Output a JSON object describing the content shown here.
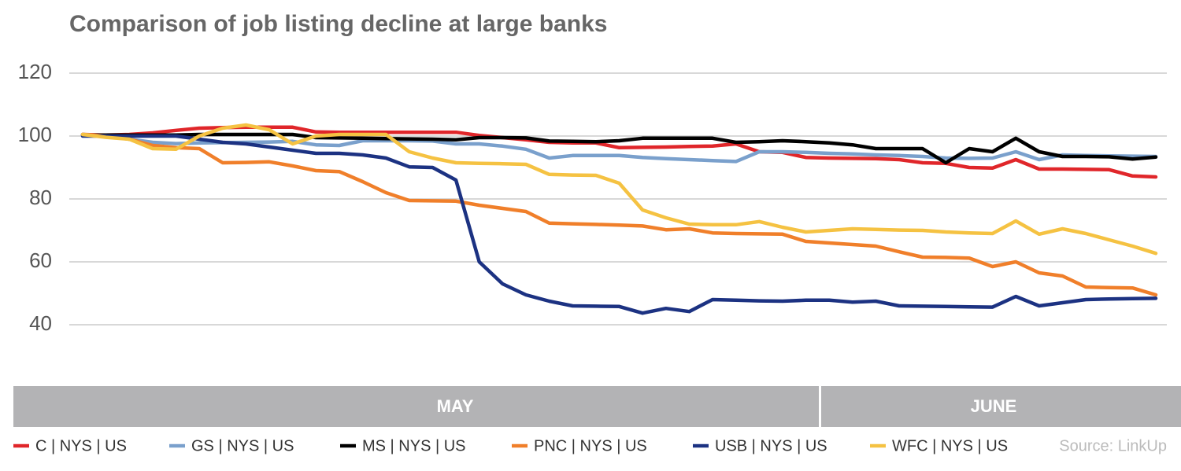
{
  "chart_data": {
    "type": "line",
    "title": "Comparison of job listing decline at large banks",
    "source": "Source: LinkUp",
    "months": [
      {
        "label": "MAY"
      },
      {
        "label": "JUNE"
      }
    ],
    "categories": [
      null,
      null,
      null,
      null,
      null,
      null,
      null,
      null,
      null,
      null,
      null,
      null,
      null,
      null,
      null,
      null,
      null,
      null,
      null,
      null,
      null,
      null,
      null,
      null,
      null,
      null,
      null,
      null,
      null,
      null,
      null,
      null,
      null,
      null,
      null,
      null,
      null,
      null,
      null,
      null,
      null,
      null,
      null,
      null,
      null,
      null,
      null
    ],
    "ylim": [
      30,
      125
    ],
    "yticks": [
      40,
      60,
      80,
      100,
      120
    ],
    "grid": true,
    "legend": "bottom",
    "series": [
      {
        "name": "C | NYS | US",
        "color": "#e0262a",
        "values": [
          100.5,
          100.3,
          100.5,
          101,
          101.8,
          102.5,
          102.7,
          102.8,
          102.8,
          102.8,
          101.3,
          101.2,
          101.2,
          101.2,
          101.2,
          101.2,
          101.2,
          100.2,
          99.5,
          98.8,
          98,
          97.8,
          97.8,
          96.3,
          96.4,
          96.5,
          96.7,
          96.8,
          97.5,
          95,
          94.8,
          93.2,
          93,
          92.9,
          92.8,
          92.5,
          91.5,
          91.3,
          90,
          89.8,
          92.5,
          89.5,
          89.5,
          89.4,
          89.3,
          87.3,
          87
        ]
      },
      {
        "name": "GS | NYS | US",
        "color": "#7aa0cc",
        "values": [
          100.5,
          100,
          99,
          98,
          97.6,
          97.8,
          97.9,
          98,
          98.1,
          98.3,
          97.2,
          97,
          98.5,
          98.5,
          98.5,
          98.4,
          97.5,
          97.5,
          96.8,
          95.8,
          93,
          93.8,
          93.8,
          93.8,
          93.2,
          92.8,
          92.5,
          92.2,
          91.9,
          95,
          95,
          94.8,
          94.5,
          94.3,
          94,
          93.8,
          93.5,
          93,
          92.9,
          93,
          95,
          92.5,
          94,
          93.8,
          93.7,
          93.6,
          93.5
        ]
      },
      {
        "name": "MS | NYS | US",
        "color": "#000000",
        "values": [
          100.3,
          100.3,
          100.3,
          100.3,
          100.3,
          100.5,
          100.5,
          100.5,
          100.5,
          100.5,
          99.5,
          99.4,
          99.3,
          99.2,
          99.1,
          99,
          98.8,
          99.5,
          99.5,
          99.4,
          98.4,
          98.3,
          98.2,
          98.5,
          99.3,
          99.3,
          99.3,
          99.3,
          98,
          98.2,
          98.5,
          98.2,
          97.8,
          97.2,
          96,
          96,
          96,
          91.5,
          96,
          95,
          99.3,
          95,
          93.5,
          93.5,
          93.4,
          92.7,
          93.3
        ]
      },
      {
        "name": "PNC | NYS | US",
        "color": "#f07f2a",
        "values": [
          100.5,
          100,
          99,
          97,
          96.3,
          96,
          91.5,
          91.6,
          91.8,
          90.5,
          89,
          88.7,
          85.5,
          82,
          79.5,
          79.4,
          79.3,
          78,
          77,
          76,
          72.3,
          72.1,
          71.9,
          71.7,
          71.4,
          70.2,
          70.5,
          69.2,
          69,
          68.9,
          68.8,
          66.5,
          66,
          65.5,
          65,
          63.2,
          61.5,
          61.4,
          61.2,
          58.5,
          60,
          56.5,
          55.5,
          52,
          51.8,
          51.7,
          49.5
        ]
      },
      {
        "name": "USB | NYS | US",
        "color": "#1c3282",
        "values": [
          100,
          100,
          100,
          100,
          100,
          99,
          98,
          97.5,
          96.5,
          95.5,
          94.5,
          94.5,
          94,
          93,
          90.2,
          90,
          86,
          60,
          53,
          49.5,
          47.5,
          46,
          45.9,
          45.8,
          43.7,
          45.2,
          44.2,
          48,
          47.8,
          47.6,
          47.5,
          47.8,
          47.8,
          47.2,
          47.5,
          46,
          45.9,
          45.8,
          45.7,
          45.6,
          49,
          46,
          47,
          48,
          48.2,
          48.3,
          48.4
        ]
      },
      {
        "name": "WFC | NYS | US",
        "color": "#f5c242",
        "values": [
          100.5,
          99.6,
          99,
          96,
          95.8,
          100,
          102.5,
          103.5,
          102,
          97.5,
          100,
          100.5,
          100.5,
          100.5,
          95,
          93,
          91.5,
          91.3,
          91.2,
          91,
          87.8,
          87.6,
          87.5,
          85,
          76.5,
          74,
          72,
          71.8,
          71.8,
          72.8,
          71,
          69.5,
          70,
          70.5,
          70.3,
          70.1,
          70,
          69.5,
          69.2,
          69,
          73,
          68.8,
          70.5,
          69,
          67,
          65,
          62.7
        ]
      }
    ]
  }
}
